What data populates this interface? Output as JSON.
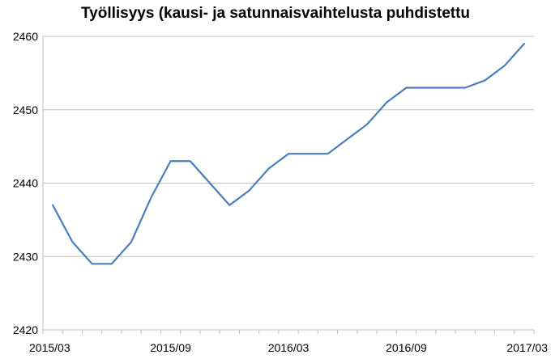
{
  "chart_data": {
    "type": "line",
    "title": "Työllisyys (kausi- ja satunnaisvaihtelusta puhdistettu",
    "xlabel": "",
    "ylabel": "",
    "ylim": [
      2420,
      2460
    ],
    "yticks": [
      2420,
      2430,
      2440,
      2450,
      2460
    ],
    "x_tick_labels": [
      "2015/03",
      "2015/09",
      "2016/03",
      "2016/09",
      "2017/03"
    ],
    "x": [
      "2015/03",
      "2015/04",
      "2015/05",
      "2015/06",
      "2015/07",
      "2015/08",
      "2015/09",
      "2015/10",
      "2015/11",
      "2015/12",
      "2016/01",
      "2016/02",
      "2016/03",
      "2016/04",
      "2016/05",
      "2016/06",
      "2016/07",
      "2016/08",
      "2016/09",
      "2016/10",
      "2016/11",
      "2016/12",
      "2017/01",
      "2017/02",
      "2017/03"
    ],
    "series": [
      {
        "color": "#4a7ebb",
        "values": [
          2437,
          2432,
          2429,
          2429,
          2432,
          2438,
          2443,
          2443,
          2440,
          2437,
          2439,
          2442,
          2444,
          2444,
          2444,
          2446,
          2448,
          2451,
          2453,
          2453,
          2453,
          2453,
          2454,
          2456,
          2459
        ]
      }
    ],
    "grid": "horizontal",
    "legend": "none"
  }
}
